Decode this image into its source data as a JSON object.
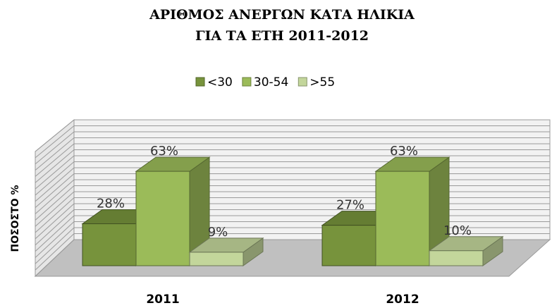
{
  "chart_data": {
    "type": "bar3d",
    "title": [
      "ΑΡΙΘΜΟΣ ΑΝΕΡΓΩΝ ΚΑΤΑ ΗΛΙΚΙΑ",
      "ΓΙΑ ΤΑ ΕΤΗ 2011-2012"
    ],
    "y_label": "ΠΟΣΟΣΤΟ %",
    "categories": [
      "2011",
      "2012"
    ],
    "series": [
      {
        "name": "<30",
        "color": "#77933c",
        "values": [
          28,
          27
        ],
        "value_labels": [
          "28%",
          "27%"
        ]
      },
      {
        "name": "30-54",
        "color": "#9bbb59",
        "values": [
          63,
          63
        ],
        "value_labels": [
          "63%",
          "63%"
        ]
      },
      {
        "name": ">55",
        "color": "#c3d69b",
        "values": [
          9,
          10
        ],
        "value_labels": [
          "9%",
          "10%"
        ]
      }
    ],
    "ylim": [
      0,
      80
    ],
    "yticks": [
      0,
      4,
      8,
      12,
      16,
      20,
      24,
      28,
      32,
      36,
      40,
      44,
      48,
      52,
      56,
      60,
      64,
      68,
      72,
      76,
      80
    ],
    "grid": true,
    "legend": "top"
  }
}
